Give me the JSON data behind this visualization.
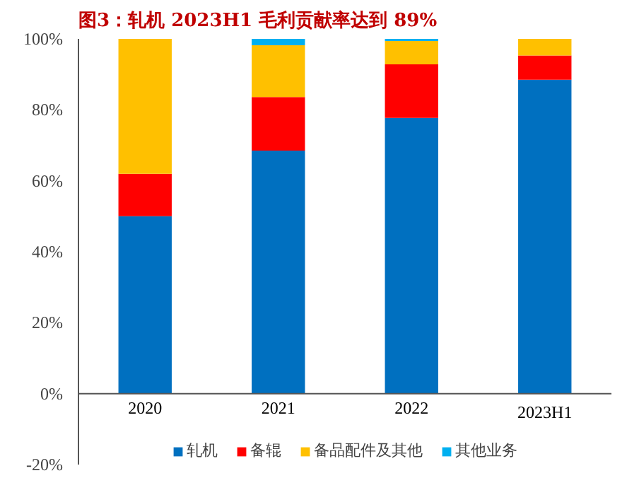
{
  "chart_data": {
    "type": "bar",
    "title": "图3：轧机 2023H1 毛利贡献率达到 89%",
    "stacked": true,
    "categories": [
      "2020",
      "2021",
      "2022",
      "2023H1"
    ],
    "series": [
      {
        "name": "轧机",
        "color": "#0070c0",
        "values": [
          50,
          68.5,
          77.7,
          88.5
        ]
      },
      {
        "name": "备辊",
        "color": "#ff0000",
        "values": [
          12,
          15.1,
          15.1,
          6.8
        ]
      },
      {
        "name": "备品配件及其他",
        "color": "#ffc000",
        "values": [
          38,
          14.6,
          6.6,
          4.7
        ]
      },
      {
        "name": "其他业务",
        "color": "#00b0f0",
        "values": [
          0,
          1.8,
          0.6,
          0
        ]
      }
    ],
    "ylim": [
      -20,
      100
    ],
    "yticks": [
      {
        "value": -20,
        "label": "-20%"
      },
      {
        "value": 0,
        "label": "0%"
      },
      {
        "value": 20,
        "label": "20%"
      },
      {
        "value": 40,
        "label": "40%"
      },
      {
        "value": 60,
        "label": "60%"
      },
      {
        "value": 80,
        "label": "80%"
      },
      {
        "value": 100,
        "label": "100%"
      }
    ],
    "grid": false,
    "legend": "bottom"
  }
}
